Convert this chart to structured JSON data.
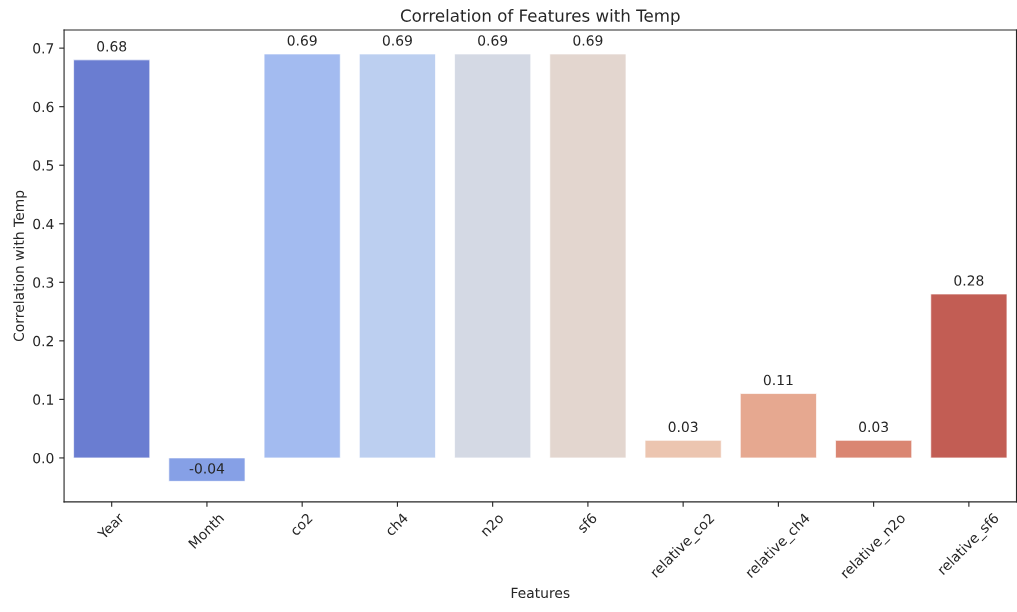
{
  "chart_data": {
    "type": "bar",
    "title": "Correlation of Features with Temp",
    "xlabel": "Features",
    "ylabel": "Correlation with Temp",
    "categories": [
      "Year",
      "Month",
      "co2",
      "ch4",
      "n2o",
      "sf6",
      "relative_co2",
      "relative_ch4",
      "relative_n2o",
      "relative_sf6"
    ],
    "values": [
      0.68,
      -0.04,
      0.69,
      0.69,
      0.69,
      0.69,
      0.03,
      0.11,
      0.03,
      0.28
    ],
    "colors": [
      "#6a7dd1",
      "#86a0e6",
      "#a3bbf0",
      "#bccff0",
      "#d4d9e4",
      "#e3d6cf",
      "#ecc5b0",
      "#e6a890",
      "#da8672",
      "#c25d54"
    ],
    "ylim": [
      -0.075,
      0.731
    ],
    "yticks": [
      {
        "value": 0.0,
        "label": "0.0"
      },
      0.1,
      0.2,
      0.3,
      0.4,
      0.5,
      0.6,
      0.7
    ],
    "data_labels": true,
    "grid": false
  }
}
